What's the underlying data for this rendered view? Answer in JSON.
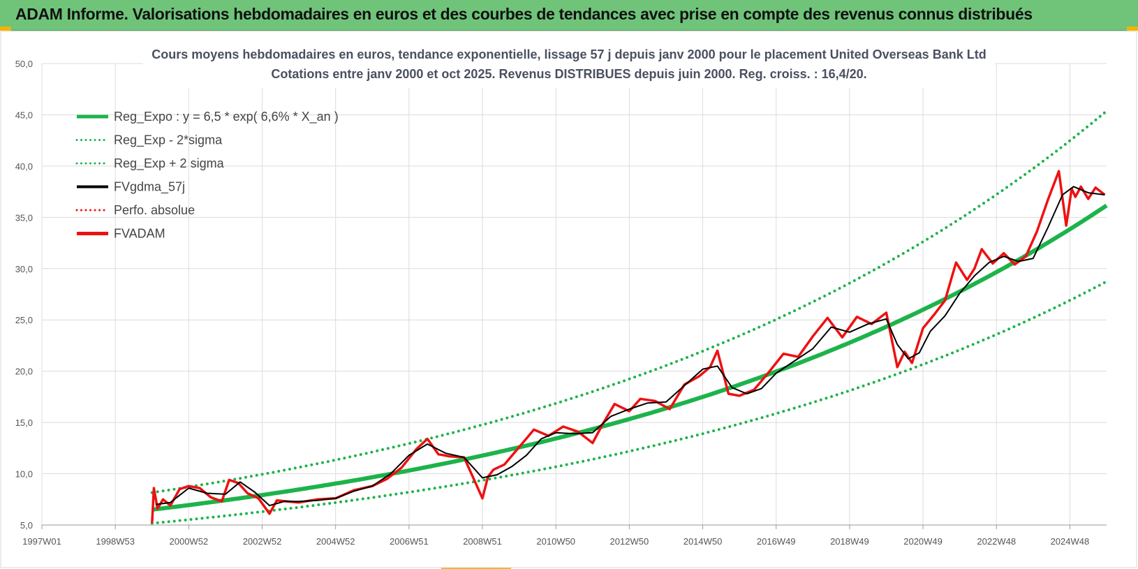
{
  "header": {
    "title": "ADAM Informe. Valorisations hebdomadaires en euros et des courbes de tendances avec prise en compte des revenus connus distribués"
  },
  "colors": {
    "header_bg": "#6fc47a",
    "trend": "#1db34b",
    "gdma": "#000000",
    "fvadam": "#ee1111",
    "perfo": "#ee1111"
  },
  "chart_data": {
    "type": "line",
    "title": "Cours moyens hebdomadaires en euros, tendance exponentielle, lissage 57 j depuis janv 2000 pour le placement United Overseas Bank Ltd",
    "subtitle": "Cotations entre janv 2000 et oct 2025. Revenus DISTRIBUES depuis juin 2000. Reg. croiss. : 16,4/20.",
    "xlabel": "",
    "ylabel": "",
    "xlim": [
      1997.0,
      2026.0
    ],
    "ylim": [
      5,
      50
    ],
    "yticks": [
      "5,0",
      "10,0",
      "15,0",
      "20,0",
      "25,0",
      "30,0",
      "35,0",
      "40,0",
      "45,0",
      "50,0"
    ],
    "xticks": [
      {
        "label": "1997W01",
        "x": 1997.0
      },
      {
        "label": "1998W53",
        "x": 1999.0
      },
      {
        "label": "2000W52",
        "x": 2001.0
      },
      {
        "label": "2002W52",
        "x": 2003.0
      },
      {
        "label": "2004W52",
        "x": 2005.0
      },
      {
        "label": "2006W51",
        "x": 2007.0
      },
      {
        "label": "2008W51",
        "x": 2009.0
      },
      {
        "label": "2010W50",
        "x": 2011.0
      },
      {
        "label": "2012W50",
        "x": 2013.0
      },
      {
        "label": "2014W50",
        "x": 2015.0
      },
      {
        "label": "2016W49",
        "x": 2017.0
      },
      {
        "label": "2018W49",
        "x": 2019.0
      },
      {
        "label": "2020W49",
        "x": 2021.0
      },
      {
        "label": "2022W48",
        "x": 2023.0
      },
      {
        "label": "2024W48",
        "x": 2025.0
      }
    ],
    "grid": true,
    "legend_position": "top-left",
    "trend": {
      "start": 2000.0,
      "end": 2026.0,
      "a": 6.5,
      "rate": 0.066,
      "upper_factor": 1.255,
      "lower_factor": 0.795
    },
    "series": [
      {
        "name": "Reg_Expo : y = 6,5 * exp( 6,6% *  X_an )",
        "style": "thick-solid",
        "color": "#1db34b"
      },
      {
        "name": "Reg_Exp - 2*sigma",
        "style": "dotted",
        "color": "#1db34b"
      },
      {
        "name": "Reg_Exp + 2 sigma",
        "style": "dotted",
        "color": "#1db34b"
      },
      {
        "name": "FVgdma_57j",
        "style": "solid",
        "color": "#000000"
      },
      {
        "name": "Perfo. absolue",
        "style": "dotted",
        "color": "#ee1111"
      },
      {
        "name": "FVADAM",
        "style": "thick-solid",
        "color": "#ee1111"
      }
    ],
    "fvadam": {
      "x": [
        2000.0,
        2000.05,
        2000.15,
        2000.3,
        2000.5,
        2000.75,
        2001.0,
        2001.3,
        2001.6,
        2001.9,
        2002.1,
        2002.35,
        2002.6,
        2002.9,
        2003.2,
        2003.4,
        2003.7,
        2004.0,
        2004.5,
        2005.0,
        2005.5,
        2006.0,
        2006.4,
        2006.8,
        2007.2,
        2007.5,
        2007.8,
        2008.1,
        2008.5,
        2008.8,
        2009.0,
        2009.15,
        2009.3,
        2009.6,
        2010.0,
        2010.4,
        2010.8,
        2011.2,
        2011.6,
        2012.0,
        2012.3,
        2012.6,
        2013.0,
        2013.3,
        2013.7,
        2014.1,
        2014.5,
        2014.9,
        2015.2,
        2015.4,
        2015.7,
        2016.0,
        2016.4,
        2016.8,
        2017.2,
        2017.6,
        2018.0,
        2018.4,
        2018.8,
        2019.2,
        2019.6,
        2020.0,
        2020.3,
        2020.5,
        2020.7,
        2021.0,
        2021.3,
        2021.6,
        2021.9,
        2022.2,
        2022.4,
        2022.6,
        2022.9,
        2023.2,
        2023.5,
        2023.8,
        2024.1,
        2024.4,
        2024.7,
        2024.9,
        2025.05,
        2025.15,
        2025.3,
        2025.5,
        2025.7,
        2025.95
      ],
      "y": [
        5.2,
        8.6,
        6.6,
        7.5,
        6.9,
        8.5,
        8.8,
        8.6,
        7.7,
        7.3,
        9.4,
        9.1,
        8.1,
        7.6,
        6.1,
        7.4,
        7.3,
        7.2,
        7.5,
        7.6,
        8.4,
        8.8,
        9.5,
        10.6,
        12.4,
        13.4,
        11.9,
        11.7,
        11.6,
        9.2,
        7.6,
        9.7,
        10.4,
        10.9,
        12.6,
        14.3,
        13.7,
        14.6,
        14.1,
        13.0,
        15.0,
        16.8,
        16.1,
        17.3,
        17.1,
        16.3,
        18.7,
        19.5,
        20.4,
        22.0,
        17.8,
        17.6,
        18.2,
        19.9,
        21.7,
        21.4,
        23.4,
        25.2,
        23.3,
        25.3,
        24.6,
        25.7,
        20.4,
        21.9,
        20.8,
        24.2,
        25.5,
        26.9,
        30.6,
        28.9,
        30.0,
        31.9,
        30.5,
        31.5,
        30.4,
        31.2,
        33.6,
        36.7,
        39.5,
        34.2,
        37.8,
        37.0,
        38.0,
        36.8,
        37.9,
        37.2
      ]
    },
    "fvgdma": {
      "x": [
        2000.1,
        2000.5,
        2001.0,
        2001.5,
        2002.0,
        2002.4,
        2002.8,
        2003.2,
        2003.6,
        2004.0,
        2004.5,
        2005.0,
        2005.5,
        2006.0,
        2006.5,
        2007.0,
        2007.5,
        2008.0,
        2008.5,
        2009.0,
        2009.4,
        2009.8,
        2010.2,
        2010.6,
        2011.0,
        2011.5,
        2012.0,
        2012.5,
        2013.0,
        2013.5,
        2014.0,
        2014.5,
        2015.0,
        2015.4,
        2015.8,
        2016.2,
        2016.6,
        2017.0,
        2017.5,
        2018.0,
        2018.5,
        2019.0,
        2019.5,
        2020.0,
        2020.3,
        2020.6,
        2020.9,
        2021.2,
        2021.6,
        2022.0,
        2022.4,
        2022.8,
        2023.2,
        2023.6,
        2024.0,
        2024.4,
        2024.8,
        2025.1,
        2025.5,
        2025.95
      ],
      "y": [
        7.0,
        7.2,
        8.6,
        8.1,
        8.0,
        9.2,
        8.2,
        6.9,
        7.3,
        7.3,
        7.4,
        7.6,
        8.3,
        8.8,
        10.0,
        11.8,
        12.9,
        12.0,
        11.6,
        9.6,
        9.9,
        10.7,
        11.8,
        13.4,
        14.0,
        13.9,
        14.0,
        15.6,
        16.3,
        16.9,
        17.0,
        18.6,
        20.2,
        20.5,
        18.4,
        17.8,
        18.3,
        19.8,
        21.0,
        22.2,
        24.3,
        23.8,
        24.6,
        25.1,
        22.6,
        21.2,
        21.8,
        23.9,
        25.4,
        27.6,
        29.3,
        30.6,
        31.2,
        30.7,
        31.0,
        34.0,
        37.2,
        38.0,
        37.4,
        37.2
      ]
    }
  }
}
